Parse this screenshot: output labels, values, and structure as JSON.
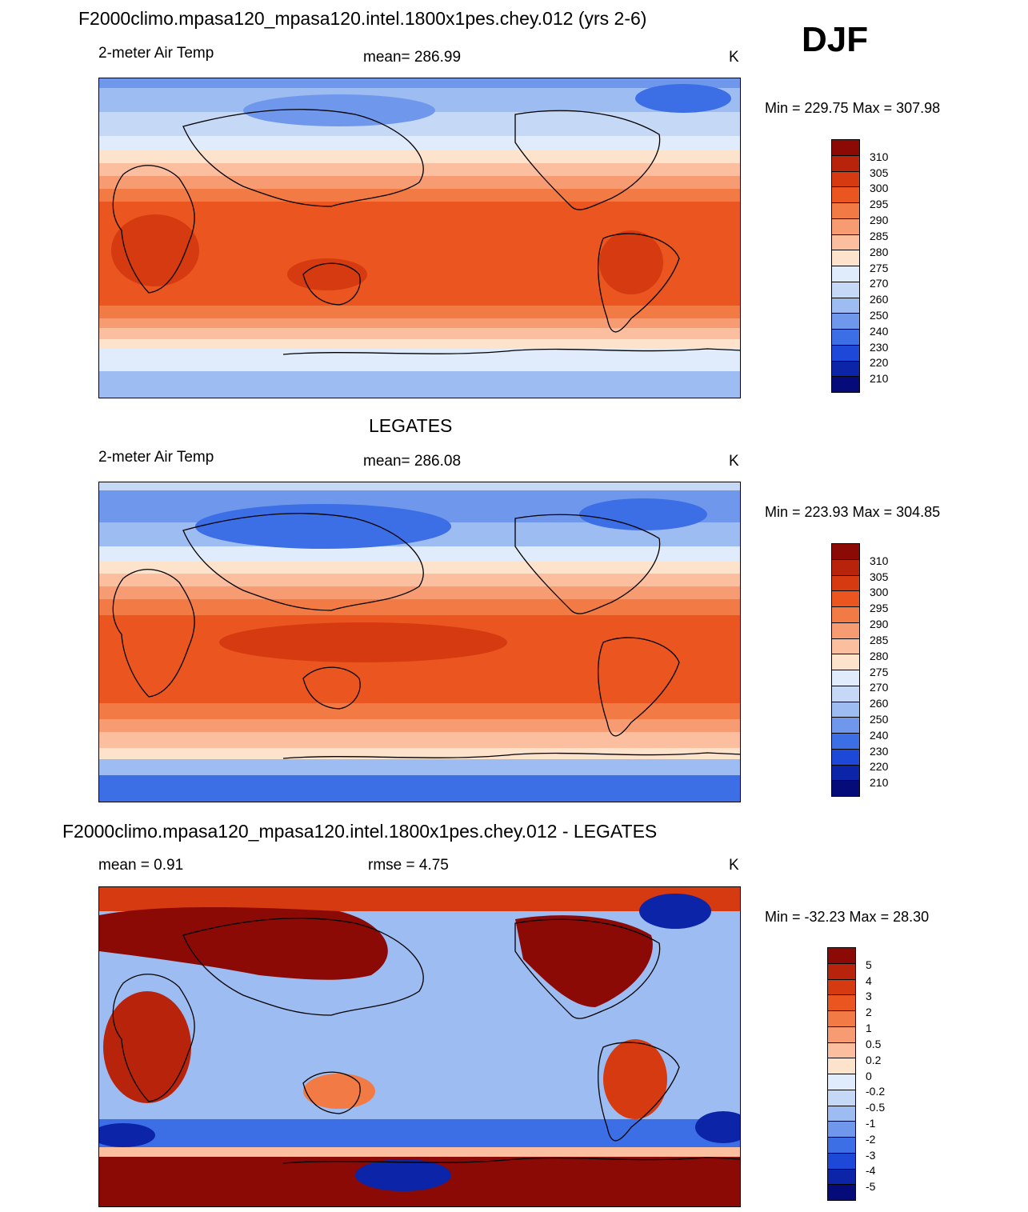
{
  "header": {
    "main_title": "F2000climo.mpasa120_mpasa120.intel.1800x1pes.chey.012 (yrs 2-6)",
    "season": "DJF"
  },
  "panel1": {
    "title": "F2000climo.mpasa120_mpasa120.intel.1800x1pes.chey.012 (yrs 2-6)",
    "left_label": "2-meter Air Temp",
    "center_label": "mean= 286.99",
    "right_label": "K",
    "minmax": "Min = 229.75 Max = 307.98"
  },
  "panel2": {
    "title": "LEGATES",
    "left_label": "2-meter Air Temp",
    "center_label": "mean= 286.08",
    "right_label": "K",
    "minmax": "Min = 223.93 Max = 304.85"
  },
  "panel3": {
    "title": "F2000climo.mpasa120_mpasa120.intel.1800x1pes.chey.012 - LEGATES",
    "left_label": "mean =   0.91",
    "center_label": "rmse =   4.75",
    "right_label": "K",
    "minmax": "Min = -32.23 Max =  28.30"
  },
  "colorbar_abs": {
    "labels": [
      "310",
      "305",
      "300",
      "295",
      "290",
      "285",
      "280",
      "275",
      "270",
      "260",
      "250",
      "240",
      "230",
      "220",
      "210"
    ],
    "colors": [
      "#8c0a06",
      "#b8230b",
      "#d63a10",
      "#ea5520",
      "#f27a45",
      "#f79c72",
      "#fbbe9f",
      "#fde2cc",
      "#e0ecfb",
      "#c5d8f6",
      "#9dbcf2",
      "#6f98ec",
      "#3c6ee6",
      "#1d48d8",
      "#0b24a8",
      "#050c7a"
    ]
  },
  "colorbar_diff": {
    "labels": [
      "5",
      "4",
      "3",
      "2",
      "1",
      "0.5",
      "0.2",
      "0",
      "-0.2",
      "-0.5",
      "-1",
      "-2",
      "-3",
      "-4",
      "-5"
    ],
    "colors": [
      "#8c0a06",
      "#b8230b",
      "#d63a10",
      "#ea5520",
      "#f27a45",
      "#f79c72",
      "#fbbe9f",
      "#fde2cc",
      "#e0ecfb",
      "#c5d8f6",
      "#9dbcf2",
      "#6f98ec",
      "#3c6ee6",
      "#1d48d8",
      "#0b24a8",
      "#050c7a"
    ]
  }
}
